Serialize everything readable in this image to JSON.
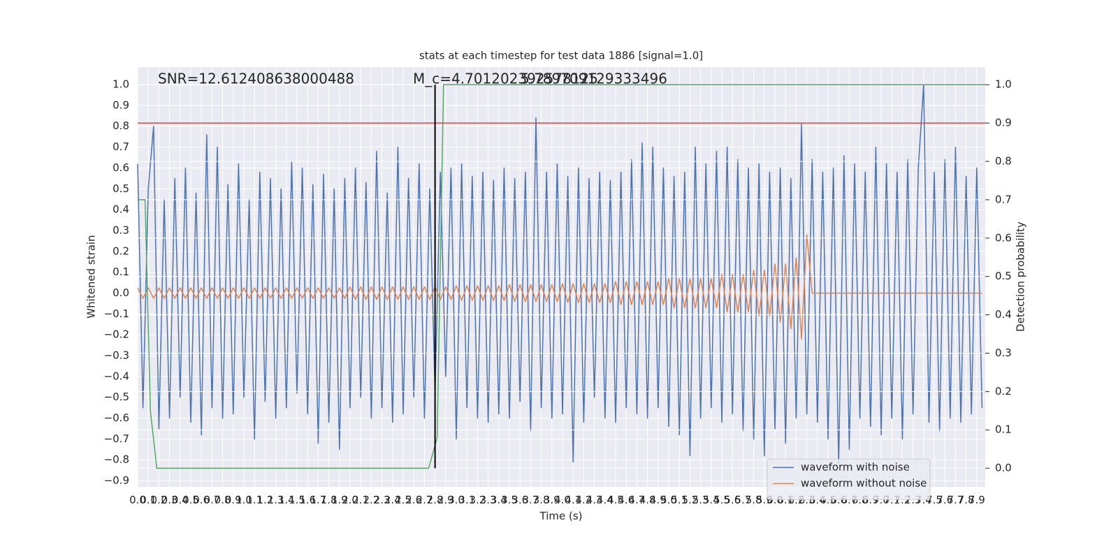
{
  "chart_data": {
    "type": "line",
    "title": "stats at each timestep for test data 1886 [signal=1.0]",
    "x_label": "Time (s)",
    "y_label": "Whitened strain",
    "y2_label": "Detection probability",
    "grid": true,
    "legend": "lower right",
    "xlim": [
      0,
      7.98
    ],
    "ylim": [
      -0.93,
      1.084
    ],
    "y2lim": [
      -0.049,
      1.046
    ],
    "xticks": [
      {
        "value": 0,
        "label": "0.0"
      },
      0.1,
      0.2,
      0.3,
      0.4,
      0.5,
      0.6,
      0.7,
      0.8,
      0.9,
      {
        "value": 1,
        "label": "1.0"
      },
      1.1,
      1.2,
      1.3,
      1.4,
      1.5,
      1.6,
      1.7,
      1.8,
      1.9,
      {
        "value": 2,
        "label": "2.0"
      },
      2.1,
      2.2,
      2.3,
      2.4,
      2.5,
      2.6,
      2.7,
      2.8,
      2.9,
      {
        "value": 3,
        "label": "3.0"
      },
      3.1,
      3.2,
      3.3,
      3.4,
      3.5,
      3.6,
      3.7,
      3.8,
      3.9,
      {
        "value": 4,
        "label": "4.0"
      },
      4.1,
      4.2,
      4.3,
      4.4,
      4.5,
      4.6,
      4.7,
      4.8,
      4.9,
      {
        "value": 5,
        "label": "5.0"
      },
      5.1,
      5.2,
      5.3,
      5.4,
      5.5,
      5.6,
      5.7,
      5.8,
      5.9,
      {
        "value": 6,
        "label": "6.0"
      },
      6.1,
      6.2,
      6.3,
      6.4,
      6.5,
      6.6,
      6.7,
      6.8,
      6.9,
      {
        "value": 7,
        "label": "7.0"
      },
      7.1,
      7.2,
      7.3,
      7.4,
      7.5,
      7.6,
      7.7,
      7.8,
      7.9
    ],
    "yticks": [
      {
        "value": -0.9,
        "label": "−0.9"
      },
      {
        "value": -0.8,
        "label": "−0.8"
      },
      {
        "value": -0.7,
        "label": "−0.7"
      },
      {
        "value": -0.6,
        "label": "−0.6"
      },
      {
        "value": -0.5,
        "label": "−0.5"
      },
      {
        "value": -0.4,
        "label": "−0.4"
      },
      {
        "value": -0.3,
        "label": "−0.3"
      },
      {
        "value": -0.2,
        "label": "−0.2"
      },
      {
        "value": -0.1,
        "label": "−0.1"
      },
      {
        "value": 0,
        "label": "0.0"
      },
      0.1,
      0.2,
      0.3,
      0.4,
      0.5,
      0.6,
      0.7,
      0.8,
      0.9,
      {
        "value": 1,
        "label": "1.0"
      }
    ],
    "y2ticks": [
      {
        "value": 0,
        "label": "0.0"
      },
      0.1,
      0.2,
      0.3,
      0.4,
      0.5,
      0.6,
      0.7,
      0.8,
      0.9,
      {
        "value": 1,
        "label": "1.0"
      }
    ],
    "annotations": [
      "SNR=12.612408638000488",
      "M_c=4.701202392578125",
      "5.789709129333496"
    ],
    "series": [
      {
        "name": "waveform with noise",
        "color": "#4c72b0",
        "x": [
          0,
          0.05,
          0.1,
          0.15,
          0.2,
          0.25,
          0.3,
          0.35,
          0.4,
          0.45,
          0.5,
          0.55,
          0.6,
          0.65,
          0.7,
          0.75,
          0.8,
          0.85,
          0.9,
          0.95,
          1,
          1.05,
          1.1,
          1.15,
          1.2,
          1.25,
          1.3,
          1.35,
          1.4,
          1.45,
          1.5,
          1.55,
          1.6,
          1.65,
          1.7,
          1.75,
          1.8,
          1.85,
          1.9,
          1.95,
          2,
          2.05,
          2.1,
          2.15,
          2.2,
          2.25,
          2.3,
          2.35,
          2.4,
          2.45,
          2.5,
          2.55,
          2.6,
          2.65,
          2.7,
          2.75,
          2.8,
          2.85,
          2.9,
          2.95,
          3,
          3.05,
          3.1,
          3.15,
          3.2,
          3.25,
          3.3,
          3.35,
          3.4,
          3.45,
          3.5,
          3.55,
          3.6,
          3.65,
          3.7,
          3.75,
          3.8,
          3.85,
          3.9,
          3.95,
          4,
          4.05,
          4.1,
          4.15,
          4.2,
          4.25,
          4.3,
          4.35,
          4.4,
          4.45,
          4.5,
          4.55,
          4.6,
          4.65,
          4.7,
          4.75,
          4.8,
          4.85,
          4.9,
          4.95,
          5,
          5.05,
          5.1,
          5.15,
          5.2,
          5.25,
          5.3,
          5.35,
          5.4,
          5.45,
          5.5,
          5.55,
          5.6,
          5.65,
          5.7,
          5.75,
          5.8,
          5.85,
          5.9,
          5.95,
          6,
          6.05,
          6.1,
          6.15,
          6.2,
          6.25,
          6.3,
          6.35,
          6.4,
          6.45,
          6.5,
          6.55,
          6.6,
          6.65,
          6.7,
          6.75,
          6.8,
          6.85,
          6.9,
          6.95,
          7,
          7.05,
          7.1,
          7.15,
          7.2,
          7.25,
          7.3,
          7.35,
          7.4,
          7.45,
          7.5,
          7.55,
          7.6,
          7.65,
          7.7,
          7.75,
          7.8,
          7.85,
          7.9,
          7.95
        ],
        "values": [
          0.62,
          -0.55,
          0.5,
          0.8,
          -0.65,
          0.45,
          -0.6,
          0.55,
          -0.5,
          0.6,
          -0.62,
          0.48,
          -0.68,
          0.76,
          -0.55,
          0.7,
          -0.6,
          0.52,
          -0.58,
          0.62,
          -0.5,
          0.45,
          -0.7,
          0.58,
          -0.52,
          0.55,
          -0.6,
          0.5,
          -0.55,
          0.63,
          -0.48,
          0.6,
          -0.58,
          0.52,
          -0.72,
          0.57,
          -0.62,
          0.5,
          -0.75,
          0.55,
          -0.55,
          0.6,
          -0.5,
          0.53,
          -0.6,
          0.68,
          -0.55,
          0.48,
          -0.62,
          0.7,
          -0.58,
          0.55,
          -0.5,
          0.62,
          -0.6,
          0.5,
          -0.48,
          0.58,
          -0.4,
          0.6,
          -0.7,
          0.62,
          -0.55,
          0.56,
          -0.6,
          0.58,
          -0.62,
          0.54,
          -0.58,
          0.6,
          -0.6,
          0.55,
          -0.52,
          0.58,
          -0.66,
          0.84,
          -0.55,
          0.58,
          -0.6,
          0.62,
          -0.58,
          0.56,
          -0.81,
          0.6,
          -0.62,
          0.55,
          -0.5,
          0.58,
          -0.6,
          0.54,
          -0.62,
          0.58,
          -0.55,
          0.64,
          -0.58,
          0.72,
          -0.6,
          0.7,
          -0.55,
          0.6,
          -0.64,
          0.56,
          -0.68,
          0.58,
          -0.78,
          0.7,
          -0.6,
          0.62,
          -0.55,
          0.68,
          -0.62,
          0.7,
          -0.58,
          0.64,
          -0.66,
          0.6,
          -0.7,
          0.62,
          -0.78,
          0.58,
          -0.65,
          0.6,
          -0.72,
          0.55,
          -0.6,
          0.81,
          -0.58,
          0.64,
          -0.62,
          0.58,
          -0.7,
          0.6,
          -0.82,
          0.66,
          -0.75,
          0.62,
          -0.6,
          0.58,
          -0.64,
          0.7,
          -0.68,
          0.62,
          -0.6,
          0.58,
          -0.7,
          0.64,
          -0.58,
          0.6,
          1.0,
          -0.62,
          0.58,
          -0.66,
          0.64,
          -0.6,
          0.7,
          -0.62,
          0.56,
          -0.58,
          0.6,
          -0.55
        ]
      },
      {
        "name": "waveform without noise",
        "color": "#dd8452",
        "x": [
          0,
          0.05,
          0.1,
          0.15,
          0.2,
          0.25,
          0.3,
          0.35,
          0.4,
          0.45,
          0.5,
          0.55,
          0.6,
          0.65,
          0.7,
          0.75,
          0.8,
          0.85,
          0.9,
          0.95,
          1,
          1.05,
          1.1,
          1.15,
          1.2,
          1.25,
          1.3,
          1.35,
          1.4,
          1.45,
          1.5,
          1.55,
          1.6,
          1.65,
          1.7,
          1.75,
          1.8,
          1.85,
          1.9,
          1.95,
          2,
          2.05,
          2.1,
          2.15,
          2.2,
          2.25,
          2.3,
          2.35,
          2.4,
          2.45,
          2.5,
          2.55,
          2.6,
          2.65,
          2.7,
          2.75,
          2.8,
          2.85,
          2.9,
          2.95,
          3,
          3.05,
          3.1,
          3.15,
          3.2,
          3.25,
          3.3,
          3.35,
          3.4,
          3.45,
          3.5,
          3.55,
          3.6,
          3.65,
          3.7,
          3.75,
          3.8,
          3.85,
          3.9,
          3.95,
          4,
          4.05,
          4.1,
          4.15,
          4.2,
          4.25,
          4.3,
          4.35,
          4.4,
          4.45,
          4.5,
          4.55,
          4.6,
          4.65,
          4.7,
          4.75,
          4.8,
          4.85,
          4.9,
          4.95,
          5,
          5.05,
          5.1,
          5.15,
          5.2,
          5.25,
          5.3,
          5.35,
          5.4,
          5.45,
          5.5,
          5.55,
          5.6,
          5.65,
          5.7,
          5.75,
          5.8,
          5.85,
          5.9,
          5.95,
          6,
          6.05,
          6.1,
          6.15,
          6.2,
          6.25,
          6.3,
          6.35,
          6.4,
          6.45,
          6.5,
          6.55,
          6.6,
          6.65,
          6.7,
          6.75,
          6.8,
          6.85,
          6.9,
          6.95,
          7,
          7.05,
          7.1,
          7.15,
          7.2,
          7.25,
          7.3,
          7.35,
          7.4,
          7.45,
          7.5,
          7.55,
          7.6,
          7.65,
          7.7,
          7.75,
          7.8,
          7.85,
          7.9,
          7.95
        ],
        "values": [
          0.025,
          -0.025,
          0.025,
          -0.025,
          0.025,
          -0.025,
          0.025,
          -0.025,
          0.025,
          -0.025,
          0.025,
          -0.025,
          0.025,
          -0.025,
          0.025,
          -0.025,
          0.025,
          -0.025,
          0.025,
          -0.025,
          0.025,
          -0.025,
          0.025,
          -0.025,
          0.025,
          -0.025,
          0.025,
          -0.025,
          0.025,
          -0.025,
          0.025,
          -0.025,
          0.025,
          -0.025,
          0.025,
          -0.025,
          0.025,
          -0.025,
          0.025,
          -0.025,
          0.03,
          -0.03,
          0.03,
          -0.03,
          0.03,
          -0.03,
          0.03,
          -0.03,
          0.03,
          -0.03,
          0.03,
          -0.03,
          0.03,
          -0.03,
          0.03,
          -0.03,
          0.03,
          -0.03,
          0.03,
          -0.03,
          0.035,
          -0.035,
          0.035,
          -0.035,
          0.035,
          -0.035,
          0.035,
          -0.035,
          0.035,
          -0.035,
          0.04,
          -0.04,
          0.04,
          -0.04,
          0.04,
          -0.04,
          0.04,
          -0.04,
          0.04,
          -0.04,
          0.045,
          -0.045,
          0.045,
          -0.045,
          0.045,
          -0.045,
          0.045,
          -0.045,
          0.045,
          -0.045,
          0.055,
          -0.055,
          0.055,
          -0.055,
          0.055,
          -0.055,
          0.055,
          -0.055,
          0.055,
          -0.055,
          0.07,
          -0.07,
          0.07,
          -0.07,
          0.07,
          -0.07,
          0.07,
          -0.07,
          0.07,
          -0.07,
          0.09,
          -0.09,
          0.09,
          -0.09,
          0.09,
          -0.09,
          0.11,
          -0.11,
          0.11,
          -0.11,
          0.14,
          -0.14,
          0.14,
          -0.17,
          0.17,
          -0.22,
          0.28,
          0,
          0,
          0,
          0,
          0,
          0,
          0,
          0,
          0,
          0,
          0,
          0,
          0,
          0,
          0,
          0,
          0,
          0,
          0,
          0,
          0,
          0,
          0,
          0,
          0,
          0,
          0,
          0,
          0,
          0,
          0,
          0,
          0
        ]
      },
      {
        "color": "#55a868",
        "axis": "y2",
        "x": [
          0,
          0.07,
          0.12,
          0.18,
          2.74,
          2.82,
          2.88,
          7.98
        ],
        "values": [
          0.7,
          0.7,
          0.15,
          0,
          0,
          0.08,
          1,
          1
        ]
      }
    ],
    "hlines": [
      {
        "value": 0.9,
        "axis": "y2",
        "color": "#c44e52"
      }
    ],
    "vlines": [
      {
        "value": 2.8,
        "color": "#000000"
      }
    ]
  }
}
